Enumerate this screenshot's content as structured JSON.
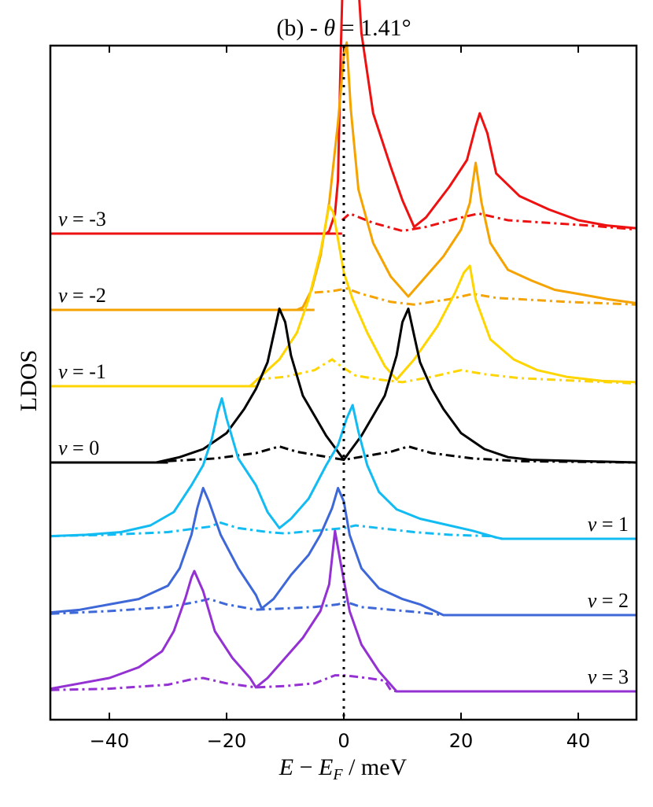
{
  "chart_data": {
    "type": "line",
    "title": "(b) - θ = 1.41°",
    "title_parts": {
      "prefix": "(b) - ",
      "symbol": "θ",
      "suffix": " = 1.41°"
    },
    "xlabel": "E − E_F / meV",
    "xlabel_parts": {
      "e": "E",
      "minus": " − ",
      "ef": "E",
      "sub": "F",
      "rest": " / meV"
    },
    "ylabel": "LDOS",
    "xlim": [
      -50,
      50
    ],
    "xticks": [
      -40,
      -20,
      0,
      20,
      40
    ],
    "xtick_labels": [
      "−40",
      "−20",
      "0",
      "20",
      "40"
    ],
    "reference_line": {
      "x": 0,
      "style": "dotted"
    },
    "series": [
      {
        "name": "ν = -3",
        "label_symbol": "ν",
        "label_value": " = -3",
        "label_side": "left",
        "color": "#ee1111",
        "baseline": 3.0,
        "start": -0.3,
        "solid": [
          [
            -50,
            0
          ],
          [
            -3,
            0
          ],
          [
            -2.5,
            0.02
          ],
          [
            -1.5,
            0.15
          ],
          [
            -1,
            0.4
          ],
          [
            -0.5,
            1.4
          ],
          [
            0,
            2.2
          ],
          [
            0.5,
            2.7
          ],
          [
            1.2,
            2.8
          ],
          [
            2,
            2.2
          ],
          [
            3,
            1.5
          ],
          [
            5,
            0.9
          ],
          [
            8,
            0.5
          ],
          [
            10,
            0.25
          ],
          [
            12,
            0.05
          ],
          [
            14,
            0.12
          ],
          [
            18,
            0.35
          ],
          [
            21,
            0.55
          ],
          [
            22.5,
            0.8
          ],
          [
            23.2,
            0.9
          ],
          [
            24.5,
            0.75
          ],
          [
            26,
            0.45
          ],
          [
            30,
            0.28
          ],
          [
            35,
            0.18
          ],
          [
            40,
            0.1
          ],
          [
            45,
            0.06
          ],
          [
            50,
            0.04
          ]
        ],
        "dashed": [
          [
            -0.3,
            0.1
          ],
          [
            1,
            0.15
          ],
          [
            5,
            0.08
          ],
          [
            10,
            0.02
          ],
          [
            14,
            0.05
          ],
          [
            20,
            0.12
          ],
          [
            23,
            0.15
          ],
          [
            28,
            0.1
          ],
          [
            35,
            0.08
          ],
          [
            42,
            0.06
          ],
          [
            50,
            0.03
          ]
        ]
      },
      {
        "name": "ν = -2",
        "label_symbol": "ν",
        "label_value": " = -2",
        "label_side": "left",
        "color": "#f5a300",
        "baseline": 2.0,
        "start": -5,
        "solid": [
          [
            -50,
            0
          ],
          [
            -8,
            0
          ],
          [
            -7,
            0.02
          ],
          [
            -5.5,
            0.15
          ],
          [
            -4,
            0.4
          ],
          [
            -2.5,
            0.8
          ],
          [
            -1,
            1.4
          ],
          [
            0,
            1.9
          ],
          [
            0.5,
            2.0
          ],
          [
            1.2,
            1.5
          ],
          [
            2.5,
            0.9
          ],
          [
            5,
            0.5
          ],
          [
            8,
            0.25
          ],
          [
            11,
            0.1
          ],
          [
            13,
            0.2
          ],
          [
            17,
            0.4
          ],
          [
            20,
            0.6
          ],
          [
            21.5,
            0.8
          ],
          [
            22.5,
            1.1
          ],
          [
            23.5,
            0.8
          ],
          [
            25,
            0.5
          ],
          [
            28,
            0.3
          ],
          [
            32,
            0.22
          ],
          [
            36,
            0.15
          ],
          [
            40,
            0.12
          ],
          [
            45,
            0.08
          ],
          [
            50,
            0.05
          ]
        ],
        "dashed": [
          [
            -5,
            0.13
          ],
          [
            -2,
            0.14
          ],
          [
            0.5,
            0.16
          ],
          [
            3,
            0.12
          ],
          [
            8,
            0.06
          ],
          [
            12,
            0.04
          ],
          [
            18,
            0.08
          ],
          [
            22,
            0.12
          ],
          [
            26,
            0.09
          ],
          [
            30,
            0.08
          ],
          [
            38,
            0.06
          ],
          [
            50,
            0.04
          ]
        ]
      },
      {
        "name": "ν = -1",
        "label_symbol": "ν",
        "label_value": " = -1",
        "label_side": "left",
        "color": "#ffd500",
        "baseline": 1.0,
        "start": -15,
        "solid": [
          [
            -50,
            0
          ],
          [
            -16,
            0
          ],
          [
            -14,
            0.08
          ],
          [
            -11,
            0.2
          ],
          [
            -8,
            0.4
          ],
          [
            -6,
            0.65
          ],
          [
            -4,
            1.0
          ],
          [
            -2.5,
            1.35
          ],
          [
            -1.8,
            1.3
          ],
          [
            -1,
            1.1
          ],
          [
            0,
            0.85
          ],
          [
            1.5,
            0.65
          ],
          [
            4,
            0.4
          ],
          [
            7,
            0.15
          ],
          [
            9,
            0.05
          ],
          [
            12,
            0.2
          ],
          [
            16,
            0.45
          ],
          [
            19,
            0.7
          ],
          [
            20.5,
            0.85
          ],
          [
            21.5,
            0.9
          ],
          [
            22.5,
            0.65
          ],
          [
            25,
            0.35
          ],
          [
            29,
            0.2
          ],
          [
            33,
            0.12
          ],
          [
            38,
            0.07
          ],
          [
            44,
            0.04
          ],
          [
            50,
            0.03
          ]
        ],
        "dashed": [
          [
            -15,
            0.05
          ],
          [
            -10,
            0.07
          ],
          [
            -5,
            0.12
          ],
          [
            -2,
            0.2
          ],
          [
            -0.5,
            0.15
          ],
          [
            2,
            0.08
          ],
          [
            6,
            0.05
          ],
          [
            10,
            0.03
          ],
          [
            15,
            0.07
          ],
          [
            20,
            0.12
          ],
          [
            24,
            0.09
          ],
          [
            30,
            0.06
          ],
          [
            40,
            0.04
          ],
          [
            50,
            0.02
          ]
        ]
      },
      {
        "name": "ν = 0",
        "label_symbol": "ν",
        "label_value": " = 0",
        "label_side": "left",
        "color": "#000000",
        "baseline": 0.0,
        "start": -30,
        "solid": [
          [
            -50,
            0
          ],
          [
            -32,
            0
          ],
          [
            -28,
            0.04
          ],
          [
            -24,
            0.1
          ],
          [
            -20,
            0.22
          ],
          [
            -17,
            0.4
          ],
          [
            -15,
            0.55
          ],
          [
            -13,
            0.75
          ],
          [
            -12,
            0.95
          ],
          [
            -11,
            1.15
          ],
          [
            -10,
            1.05
          ],
          [
            -9,
            0.8
          ],
          [
            -7,
            0.5
          ],
          [
            -5,
            0.35
          ],
          [
            -3,
            0.2
          ],
          [
            -1,
            0.08
          ],
          [
            0,
            0.02
          ],
          [
            1,
            0.08
          ],
          [
            3,
            0.2
          ],
          [
            5,
            0.35
          ],
          [
            7,
            0.5
          ],
          [
            9,
            0.8
          ],
          [
            10,
            1.05
          ],
          [
            11,
            1.15
          ],
          [
            12,
            0.95
          ],
          [
            13,
            0.75
          ],
          [
            15,
            0.55
          ],
          [
            17,
            0.4
          ],
          [
            20,
            0.22
          ],
          [
            24,
            0.1
          ],
          [
            28,
            0.04
          ],
          [
            32,
            0.02
          ],
          [
            50,
            0
          ]
        ],
        "dashed": [
          [
            -30,
            0.01
          ],
          [
            -22,
            0.03
          ],
          [
            -15,
            0.07
          ],
          [
            -11,
            0.12
          ],
          [
            -8,
            0.08
          ],
          [
            -4,
            0.05
          ],
          [
            0,
            0.02
          ],
          [
            4,
            0.05
          ],
          [
            8,
            0.08
          ],
          [
            11,
            0.12
          ],
          [
            15,
            0.07
          ],
          [
            22,
            0.03
          ],
          [
            30,
            0.01
          ],
          [
            50,
            0
          ]
        ]
      },
      {
        "name": "ν = 1",
        "label_symbol": "ν",
        "label_value": " = 1",
        "label_side": "right",
        "color": "#12bcf2",
        "baseline": -1.0,
        "start": -50,
        "solid": [
          [
            -50,
            0.02
          ],
          [
            -44,
            0.03
          ],
          [
            -38,
            0.05
          ],
          [
            -33,
            0.1
          ],
          [
            -29,
            0.2
          ],
          [
            -26,
            0.4
          ],
          [
            -24,
            0.55
          ],
          [
            -22.5,
            0.75
          ],
          [
            -21.5,
            0.95
          ],
          [
            -20.8,
            1.05
          ],
          [
            -20,
            0.9
          ],
          [
            -18,
            0.6
          ],
          [
            -15,
            0.4
          ],
          [
            -13,
            0.2
          ],
          [
            -11,
            0.08
          ],
          [
            -9,
            0.15
          ],
          [
            -6,
            0.3
          ],
          [
            -3,
            0.55
          ],
          [
            -1,
            0.7
          ],
          [
            0.5,
            0.9
          ],
          [
            1.5,
            1.0
          ],
          [
            2.5,
            0.8
          ],
          [
            4,
            0.55
          ],
          [
            6,
            0.35
          ],
          [
            9,
            0.22
          ],
          [
            13,
            0.15
          ],
          [
            18,
            0.1
          ],
          [
            22,
            0.06
          ],
          [
            26,
            0.01
          ],
          [
            27,
            0
          ],
          [
            50,
            0
          ]
        ],
        "dashed": [
          [
            -50,
            0.02
          ],
          [
            -40,
            0.03
          ],
          [
            -30,
            0.05
          ],
          [
            -23,
            0.09
          ],
          [
            -21,
            0.12
          ],
          [
            -18,
            0.08
          ],
          [
            -13,
            0.05
          ],
          [
            -10,
            0.04
          ],
          [
            -5,
            0.06
          ],
          [
            0,
            0.08
          ],
          [
            2,
            0.1
          ],
          [
            6,
            0.08
          ],
          [
            12,
            0.05
          ],
          [
            18,
            0.03
          ],
          [
            25,
            0.02
          ],
          [
            27,
            0
          ],
          [
            50,
            0
          ]
        ]
      },
      {
        "name": "ν = 2",
        "label_symbol": "ν",
        "label_value": " = 2",
        "label_side": "right",
        "color": "#3e68d8",
        "baseline": -2.0,
        "start": -50,
        "solid": [
          [
            -50,
            0.02
          ],
          [
            -45,
            0.04
          ],
          [
            -40,
            0.08
          ],
          [
            -35,
            0.12
          ],
          [
            -30,
            0.22
          ],
          [
            -28,
            0.35
          ],
          [
            -26,
            0.6
          ],
          [
            -25,
            0.8
          ],
          [
            -24,
            0.95
          ],
          [
            -23,
            0.85
          ],
          [
            -21,
            0.6
          ],
          [
            -18,
            0.35
          ],
          [
            -15,
            0.15
          ],
          [
            -14,
            0.05
          ],
          [
            -12,
            0.12
          ],
          [
            -9,
            0.3
          ],
          [
            -6,
            0.45
          ],
          [
            -4,
            0.6
          ],
          [
            -2,
            0.8
          ],
          [
            -1,
            0.95
          ],
          [
            0,
            0.85
          ],
          [
            1,
            0.6
          ],
          [
            3,
            0.35
          ],
          [
            6,
            0.2
          ],
          [
            10,
            0.12
          ],
          [
            13,
            0.08
          ],
          [
            16,
            0.02
          ],
          [
            17,
            0
          ],
          [
            50,
            0
          ]
        ],
        "dashed": [
          [
            -50,
            0.01
          ],
          [
            -40,
            0.03
          ],
          [
            -30,
            0.06
          ],
          [
            -25,
            0.1
          ],
          [
            -23,
            0.12
          ],
          [
            -20,
            0.08
          ],
          [
            -15,
            0.04
          ],
          [
            -10,
            0.05
          ],
          [
            -5,
            0.06
          ],
          [
            -1,
            0.08
          ],
          [
            0.3,
            0.1
          ],
          [
            3,
            0.06
          ],
          [
            8,
            0.04
          ],
          [
            13,
            0.02
          ],
          [
            17,
            0
          ],
          [
            50,
            0
          ]
        ]
      },
      {
        "name": "ν = 3",
        "label_symbol": "ν",
        "label_value": " = 3",
        "label_side": "right",
        "color": "#9431d2",
        "baseline": -3.0,
        "start": -50,
        "solid": [
          [
            -50,
            0.02
          ],
          [
            -45,
            0.06
          ],
          [
            -40,
            0.1
          ],
          [
            -35,
            0.18
          ],
          [
            -31,
            0.3
          ],
          [
            -29,
            0.45
          ],
          [
            -27,
            0.7
          ],
          [
            -26,
            0.85
          ],
          [
            -25.5,
            0.9
          ],
          [
            -24,
            0.75
          ],
          [
            -22,
            0.45
          ],
          [
            -19,
            0.25
          ],
          [
            -16,
            0.1
          ],
          [
            -15,
            0.03
          ],
          [
            -13,
            0.1
          ],
          [
            -10,
            0.25
          ],
          [
            -7,
            0.4
          ],
          [
            -4,
            0.6
          ],
          [
            -2.5,
            0.8
          ],
          [
            -1.5,
            1.2
          ],
          [
            -0.5,
            0.95
          ],
          [
            1,
            0.6
          ],
          [
            3,
            0.35
          ],
          [
            6,
            0.15
          ],
          [
            8,
            0.05
          ],
          [
            9,
            0
          ],
          [
            50,
            0
          ]
        ],
        "dashed": [
          [
            -50,
            0.01
          ],
          [
            -40,
            0.02
          ],
          [
            -30,
            0.05
          ],
          [
            -26,
            0.09
          ],
          [
            -24,
            0.1
          ],
          [
            -20,
            0.06
          ],
          [
            -15,
            0.03
          ],
          [
            -10,
            0.04
          ],
          [
            -5,
            0.06
          ],
          [
            -1.5,
            0.12
          ],
          [
            0,
            0.12
          ],
          [
            4,
            0.1
          ],
          [
            7,
            0.08
          ],
          [
            8,
            0.01
          ],
          [
            9,
            0
          ],
          [
            50,
            0
          ]
        ]
      }
    ]
  }
}
